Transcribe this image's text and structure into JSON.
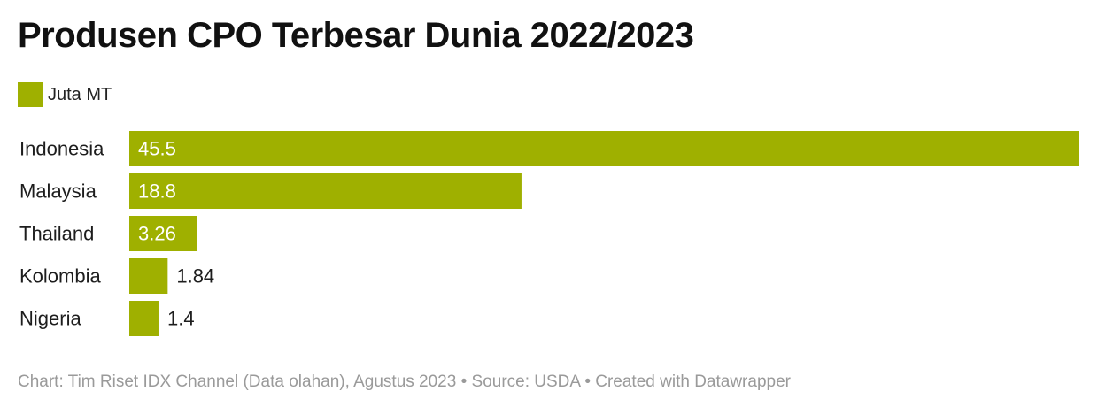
{
  "chart_data": {
    "type": "bar",
    "orientation": "horizontal",
    "title": "Produsen CPO Terbesar Dunia 2022/2023",
    "categories": [
      "Indonesia",
      "Malaysia",
      "Thailand",
      "Kolombia",
      "Nigeria"
    ],
    "series": [
      {
        "name": "Juta MT",
        "values": [
          45.5,
          18.8,
          3.26,
          1.84,
          1.4
        ],
        "labels": [
          "45.5",
          "18.8",
          "3.26",
          "1.84",
          "1.4"
        ]
      }
    ],
    "xlim": [
      0,
      45.5
    ],
    "grid": false,
    "legend_position": "top-left",
    "bar_color": "#9fb000",
    "footer": {
      "chart_credit": "Chart: Tim Riset IDX Channel (Data olahan), Agustus 2023",
      "source": "Source: USDA",
      "created_with": "Created with Datawrapper",
      "separator": "•"
    }
  }
}
